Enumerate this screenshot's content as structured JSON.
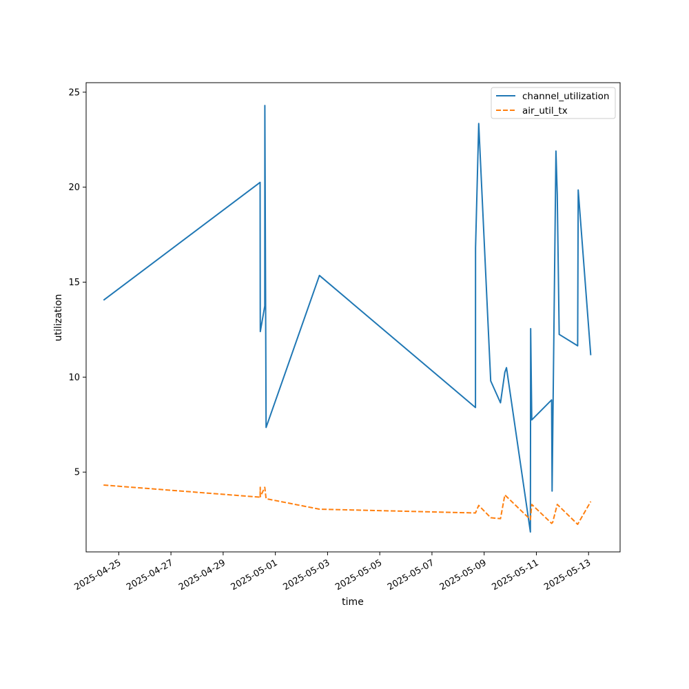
{
  "chart_data": {
    "type": "line",
    "title": "",
    "xlabel": "time",
    "ylabel": "utilization",
    "x_axis_type": "date",
    "xlim": [
      "2025-04-23T18:00",
      "2025-05-14T05:00"
    ],
    "ylim": [
      0.8,
      25.5
    ],
    "x_ticks": [
      "2025-04-25",
      "2025-04-27",
      "2025-04-29",
      "2025-05-01",
      "2025-05-03",
      "2025-05-05",
      "2025-05-07",
      "2025-05-09",
      "2025-05-11",
      "2025-05-13"
    ],
    "y_ticks": [
      5,
      10,
      15,
      20,
      25
    ],
    "grid": false,
    "legend_position": "top-right",
    "series": [
      {
        "name": "channel_utilization",
        "color": "#1f77b4",
        "dash": "solid",
        "points": [
          {
            "x": "2025-04-24T10:00",
            "y": 14.05
          },
          {
            "x": "2025-04-30T10:00",
            "y": 20.25
          },
          {
            "x": "2025-04-30T10:05",
            "y": 13.6
          },
          {
            "x": "2025-04-30T10:10",
            "y": 12.4
          },
          {
            "x": "2025-04-30T14:15",
            "y": 13.75
          },
          {
            "x": "2025-04-30T14:20",
            "y": 24.3
          },
          {
            "x": "2025-04-30T15:30",
            "y": 7.35
          },
          {
            "x": "2025-05-02T16:30",
            "y": 15.35
          },
          {
            "x": "2025-05-08T16:00",
            "y": 8.4
          },
          {
            "x": "2025-05-08T16:05",
            "y": 16.8
          },
          {
            "x": "2025-05-08T19:00",
            "y": 23.35
          },
          {
            "x": "2025-05-09T06:00",
            "y": 9.8
          },
          {
            "x": "2025-05-09T15:00",
            "y": 8.65
          },
          {
            "x": "2025-05-09T19:00",
            "y": 10.25
          },
          {
            "x": "2025-05-09T20:30",
            "y": 10.5
          },
          {
            "x": "2025-05-10T18:30",
            "y": 1.85
          },
          {
            "x": "2025-05-10T18:45",
            "y": 12.55
          },
          {
            "x": "2025-05-10T19:45",
            "y": 7.75
          },
          {
            "x": "2025-05-11T14:00",
            "y": 8.8
          },
          {
            "x": "2025-05-11T14:30",
            "y": 4.0
          },
          {
            "x": "2025-05-11T18:00",
            "y": 21.9
          },
          {
            "x": "2025-05-11T19:15",
            "y": 19.6
          },
          {
            "x": "2025-05-11T21:00",
            "y": 12.25
          },
          {
            "x": "2025-05-12T14:00",
            "y": 11.65
          },
          {
            "x": "2025-05-12T14:30",
            "y": 19.85
          },
          {
            "x": "2025-05-13T02:00",
            "y": 11.15
          }
        ]
      },
      {
        "name": "air_util_tx",
        "color": "#ff7f0e",
        "dash": "dashed",
        "points": [
          {
            "x": "2025-04-24T10:00",
            "y": 4.32
          },
          {
            "x": "2025-04-30T10:00",
            "y": 3.68
          },
          {
            "x": "2025-04-30T10:05",
            "y": 4.2
          },
          {
            "x": "2025-04-30T10:10",
            "y": 3.7
          },
          {
            "x": "2025-04-30T14:15",
            "y": 4.2
          },
          {
            "x": "2025-04-30T15:30",
            "y": 3.6
          },
          {
            "x": "2025-05-02T16:30",
            "y": 3.05
          },
          {
            "x": "2025-05-08T16:00",
            "y": 2.85
          },
          {
            "x": "2025-05-08T19:00",
            "y": 3.25
          },
          {
            "x": "2025-05-09T06:00",
            "y": 2.6
          },
          {
            "x": "2025-05-09T15:00",
            "y": 2.55
          },
          {
            "x": "2025-05-09T19:00",
            "y": 3.8
          },
          {
            "x": "2025-05-10T18:30",
            "y": 2.5
          },
          {
            "x": "2025-05-10T19:45",
            "y": 3.3
          },
          {
            "x": "2025-05-11T14:00",
            "y": 2.3
          },
          {
            "x": "2025-05-11T15:00",
            "y": 2.35
          },
          {
            "x": "2025-05-11T19:15",
            "y": 3.3
          },
          {
            "x": "2025-05-12T14:00",
            "y": 2.25
          },
          {
            "x": "2025-05-13T02:00",
            "y": 3.45
          }
        ]
      }
    ]
  }
}
